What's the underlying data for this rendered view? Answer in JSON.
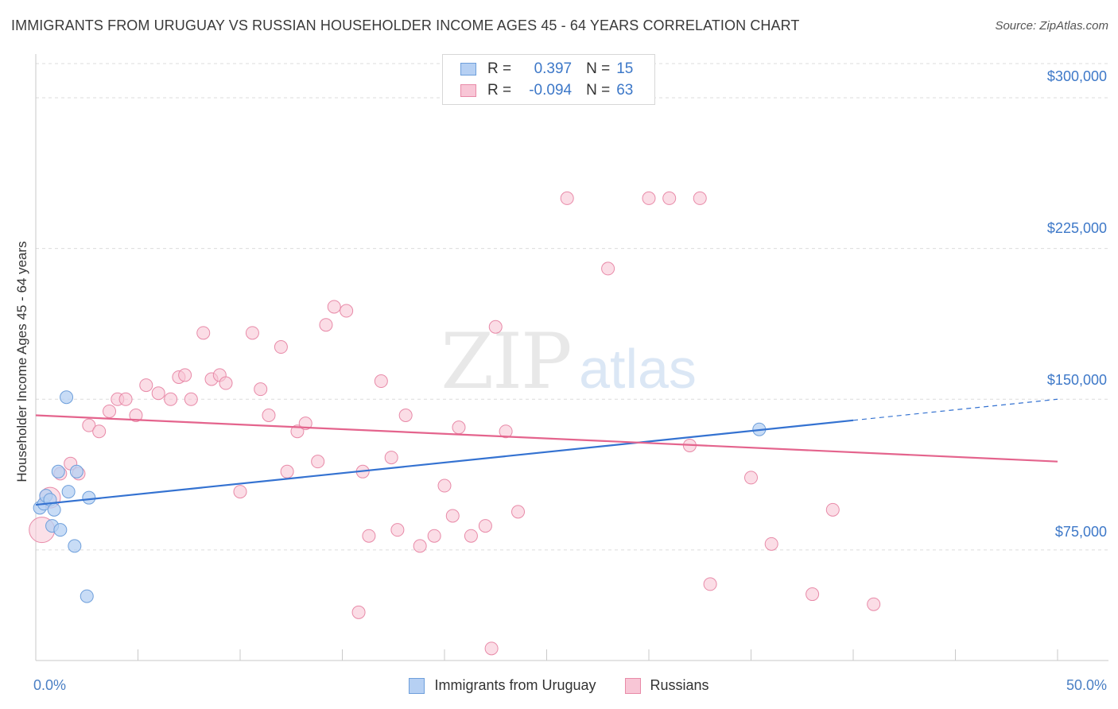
{
  "title": "IMMIGRANTS FROM URUGUAY VS RUSSIAN HOUSEHOLDER INCOME AGES 45 - 64 YEARS CORRELATION CHART",
  "source": "Source: ZipAtlas.com",
  "watermark": {
    "zip": "ZIP",
    "atlas": "atlas"
  },
  "legend": {
    "rows": [
      {
        "r_label": "R =",
        "r_value": "0.397",
        "n_label": "N =",
        "n_value": "15"
      },
      {
        "r_label": "R =",
        "r_value": "-0.094",
        "n_label": "N =",
        "n_value": "63"
      }
    ]
  },
  "bottom_legend": [
    "Immigrants from Uruguay",
    "Russians"
  ],
  "x_tick_labels": {
    "min": "0.0%",
    "max": "50.0%"
  },
  "y_tick_labels": [
    "$300,000",
    "$225,000",
    "$150,000",
    "$75,000"
  ],
  "colors": {
    "uruguay_fill": "#b6d0f3",
    "uruguay_stroke": "#6e9fdb",
    "uruguay_line": "#3472d1",
    "russian_fill": "#f8c6d6",
    "russian_stroke": "#e88aa8",
    "russian_line": "#e4648d",
    "grid": "#dcdcdc",
    "axis_text": "#3d78c8"
  },
  "chart_data": {
    "type": "scatter",
    "title": "IMMIGRANTS FROM URUGUAY VS RUSSIAN HOUSEHOLDER INCOME AGES 45 - 64 YEARS CORRELATION CHART",
    "xlabel": "",
    "ylabel": "Householder Income Ages 45 - 64 years",
    "xlim": [
      0,
      50
    ],
    "ylim": [
      20000,
      317000
    ],
    "y_ticks": [
      75000,
      150000,
      225000,
      300000
    ],
    "grid": true,
    "series": [
      {
        "name": "Immigrants from Uruguay",
        "R": 0.397,
        "N": 15,
        "points": [
          [
            0.2,
            96000
          ],
          [
            0.4,
            98000
          ],
          [
            0.5,
            102000
          ],
          [
            0.7,
            100000
          ],
          [
            0.9,
            95000
          ],
          [
            0.8,
            87000
          ],
          [
            1.1,
            114000
          ],
          [
            1.2,
            85000
          ],
          [
            1.6,
            104000
          ],
          [
            1.5,
            151000
          ],
          [
            1.9,
            77000
          ],
          [
            2.0,
            114000
          ],
          [
            2.6,
            101000
          ],
          [
            2.5,
            52000
          ],
          [
            35.4,
            135000
          ]
        ],
        "trend": {
          "x0": 0,
          "y0": 97500,
          "x1": 40,
          "y1": 139500,
          "dashed_to_x": 50,
          "dashed_to_y": 150000
        }
      },
      {
        "name": "Russians",
        "R": -0.094,
        "N": 63,
        "points": [
          [
            0.3,
            85000
          ],
          [
            0.7,
            101000
          ],
          [
            1.2,
            113000
          ],
          [
            1.7,
            118000
          ],
          [
            2.1,
            113000
          ],
          [
            2.6,
            137000
          ],
          [
            3.1,
            134000
          ],
          [
            3.6,
            144000
          ],
          [
            4.0,
            150000
          ],
          [
            4.4,
            150000
          ],
          [
            4.9,
            142000
          ],
          [
            5.4,
            157000
          ],
          [
            6.0,
            153000
          ],
          [
            6.6,
            150000
          ],
          [
            7.0,
            161000
          ],
          [
            7.3,
            162000
          ],
          [
            7.6,
            150000
          ],
          [
            8.2,
            183000
          ],
          [
            8.6,
            160000
          ],
          [
            9.0,
            162000
          ],
          [
            9.3,
            158000
          ],
          [
            10.0,
            104000
          ],
          [
            10.6,
            183000
          ],
          [
            11.0,
            155000
          ],
          [
            11.4,
            142000
          ],
          [
            12.0,
            176000
          ],
          [
            12.3,
            114000
          ],
          [
            12.8,
            134000
          ],
          [
            13.2,
            138000
          ],
          [
            13.8,
            119000
          ],
          [
            14.2,
            187000
          ],
          [
            14.6,
            196000
          ],
          [
            15.2,
            194000
          ],
          [
            15.8,
            44000
          ],
          [
            16.0,
            114000
          ],
          [
            16.3,
            82000
          ],
          [
            16.9,
            159000
          ],
          [
            17.4,
            121000
          ],
          [
            17.7,
            85000
          ],
          [
            18.1,
            142000
          ],
          [
            18.8,
            77000
          ],
          [
            19.5,
            82000
          ],
          [
            20.0,
            107000
          ],
          [
            20.4,
            92000
          ],
          [
            20.7,
            136000
          ],
          [
            21.3,
            82000
          ],
          [
            22.0,
            87000
          ],
          [
            22.3,
            26000
          ],
          [
            22.5,
            186000
          ],
          [
            23.0,
            134000
          ],
          [
            23.6,
            94000
          ],
          [
            26.0,
            250000
          ],
          [
            28.0,
            215000
          ],
          [
            30.0,
            250000
          ],
          [
            31.0,
            250000
          ],
          [
            32.0,
            127000
          ],
          [
            32.5,
            250000
          ],
          [
            33.0,
            58000
          ],
          [
            35.0,
            111000
          ],
          [
            36.0,
            78000
          ],
          [
            38.0,
            53000
          ],
          [
            39.0,
            95000
          ],
          [
            41.0,
            48000
          ]
        ],
        "trend": {
          "x0": 0,
          "y0": 142000,
          "x1": 50,
          "y1": 119000
        }
      }
    ]
  }
}
